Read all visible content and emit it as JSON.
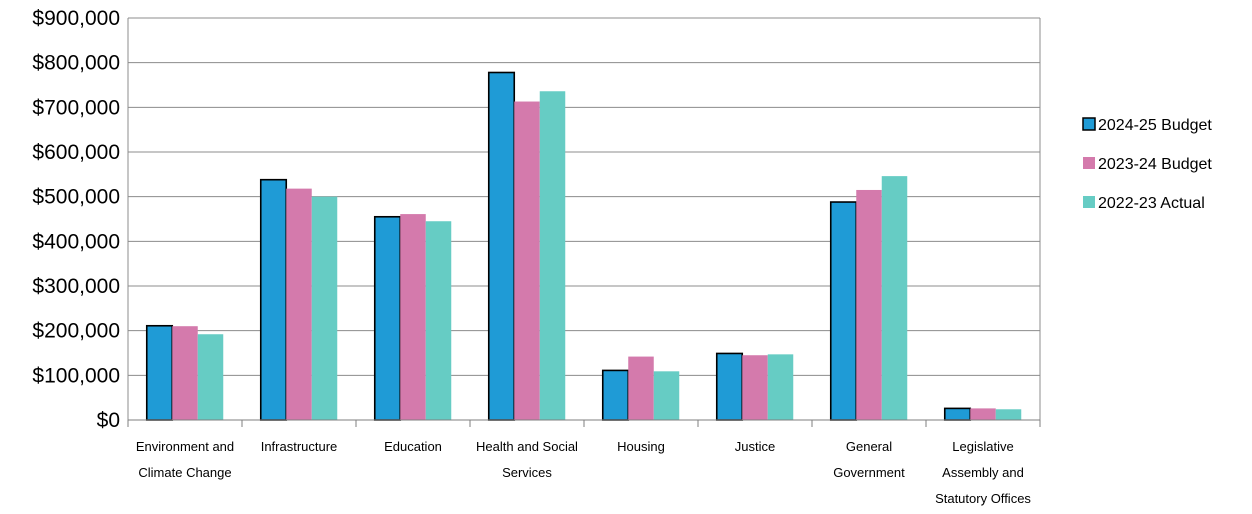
{
  "chart_data": {
    "type": "bar",
    "categories": [
      "Environment and Climate Change",
      "Infrastructure",
      "Education",
      "Health and Social Services",
      "Housing",
      "Justice",
      "General Government",
      "Legislative Assembly and Statutory Offices"
    ],
    "category_lines": [
      [
        "Environment and",
        "Climate Change"
      ],
      [
        "Infrastructure"
      ],
      [
        "Education"
      ],
      [
        "Health and Social",
        "Services"
      ],
      [
        "Housing"
      ],
      [
        "Justice"
      ],
      [
        "General",
        "Government"
      ],
      [
        "Legislative",
        "Assembly and",
        "Statutory Offices"
      ]
    ],
    "series": [
      {
        "name": "2024-25 Budget",
        "color": "#1f9bd6",
        "outlined": true,
        "values": [
          211000,
          538000,
          455000,
          778000,
          111000,
          149000,
          488000,
          26000
        ]
      },
      {
        "name": "2023-24 Budget",
        "color": "#d47aac",
        "outlined": false,
        "values": [
          210000,
          518000,
          461000,
          713000,
          142000,
          145000,
          515000,
          26000
        ]
      },
      {
        "name": "2022-23 Actual",
        "color": "#66ccc4",
        "outlined": false,
        "values": [
          192000,
          500000,
          445000,
          736000,
          109000,
          147000,
          546000,
          24000
        ]
      }
    ],
    "ylim": [
      0,
      900000
    ],
    "yticks": [
      0,
      100000,
      200000,
      300000,
      400000,
      500000,
      600000,
      700000,
      800000,
      900000
    ],
    "ytick_labels": [
      "$0",
      "$100,000",
      "$200,000",
      "$300,000",
      "$400,000",
      "$500,000",
      "$600,000",
      "$700,000",
      "$800,000",
      "$900,000"
    ],
    "title": "",
    "xlabel": "",
    "ylabel": "",
    "grid": true,
    "legend_position": "right"
  }
}
